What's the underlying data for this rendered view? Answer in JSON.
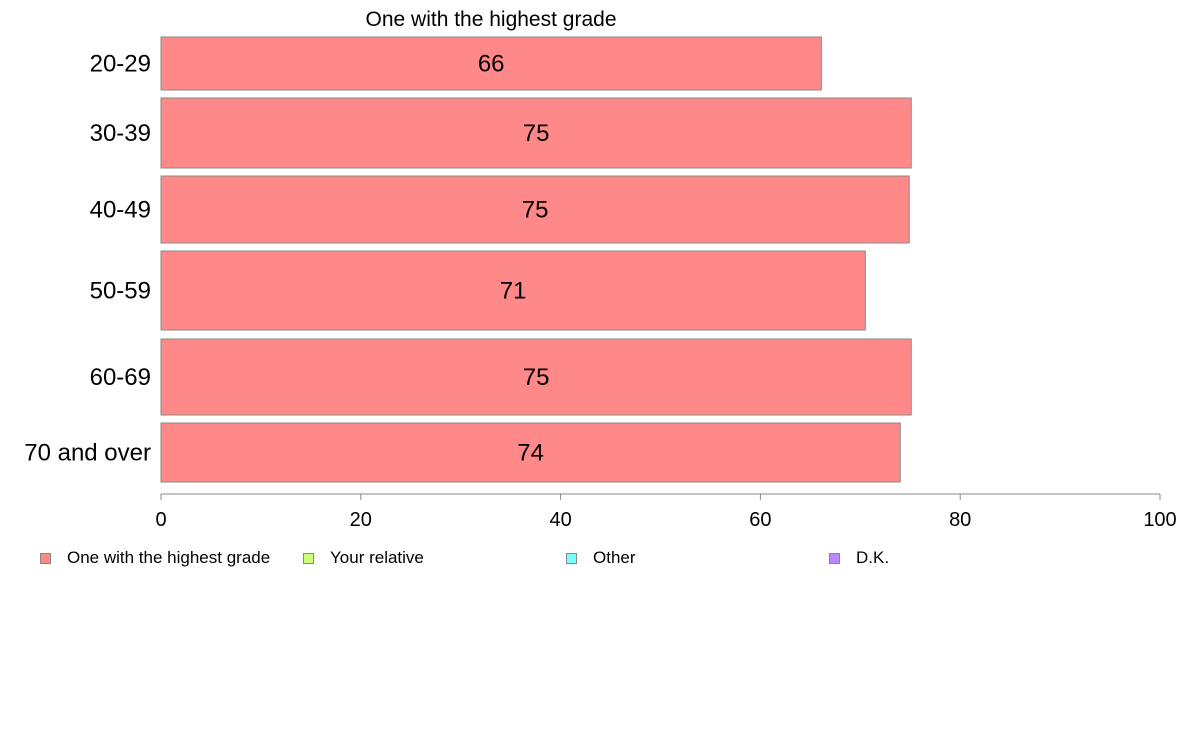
{
  "chart_data": {
    "type": "bar",
    "orientation": "horizontal",
    "title": "One with the highest grade",
    "categories": [
      "20-29",
      "30-39",
      "40-49",
      "50-59",
      "60-69",
      "70 and over"
    ],
    "values": [
      66.1,
      75.1,
      74.9,
      70.5,
      75.1,
      74.0
    ],
    "value_labels": [
      "66",
      "75",
      "75",
      "71",
      "75",
      "74"
    ],
    "xlim": [
      0,
      100
    ],
    "xticks": [
      0,
      20,
      40,
      60,
      80,
      100
    ],
    "grid": false,
    "bar_color": "#ff8888",
    "legend_position": "bottom",
    "legend": [
      {
        "label": "One with the highest grade",
        "color": "#ff8888"
      },
      {
        "label": "Your relative",
        "color": "#ccff77"
      },
      {
        "label": "Other",
        "color": "#77ffff"
      },
      {
        "label": "D.K.",
        "color": "#bb88ff"
      }
    ]
  }
}
